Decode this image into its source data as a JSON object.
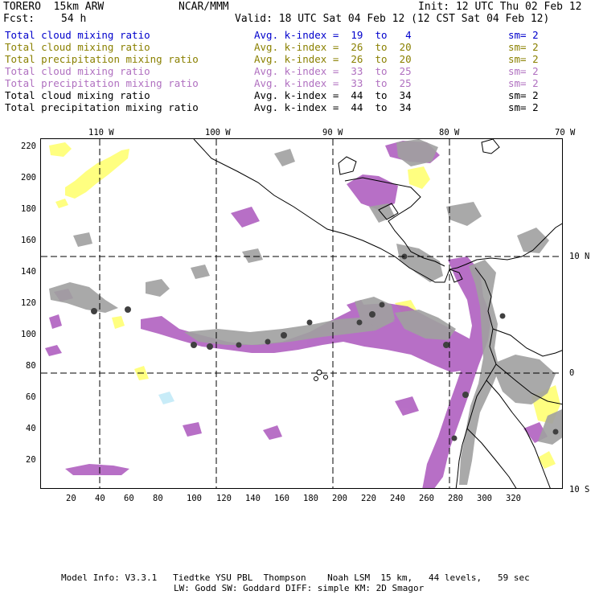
{
  "header": {
    "model": "TORERO  15km ARW",
    "org": "NCAR/MMM",
    "init": "Init: 12 UTC Thu 02 Feb 12",
    "fcst_label": "Fcst:",
    "fcst_value": "54 h",
    "valid": "Valid: 18 UTC Sat 04 Feb 12 (12 CST Sat 04 Feb 12)"
  },
  "legend": [
    {
      "field": "Total cloud mixing ratio",
      "kindex": "Avg. k-index =  19  to   4",
      "sm": "sm= 2",
      "color": "#0000cc"
    },
    {
      "field": "Total cloud mixing ratio",
      "kindex": "Avg. k-index =  26  to  20",
      "sm": "sm= 2",
      "color": "#8a8000"
    },
    {
      "field": "Total precipitation mixing ratio",
      "kindex": "Avg. k-index =  26  to  20",
      "sm": "sm= 2",
      "color": "#8a8000"
    },
    {
      "field": "Total cloud mixing ratio",
      "kindex": "Avg. k-index =  33  to  25",
      "sm": "sm= 2",
      "color": "#b070c0"
    },
    {
      "field": "Total precipitation mixing ratio",
      "kindex": "Avg. k-index =  33  to  25",
      "sm": "sm= 2",
      "color": "#b070c0"
    },
    {
      "field": "Total cloud mixing ratio",
      "kindex": "Avg. k-index =  44  to  34",
      "sm": "sm= 2",
      "color": "#000000"
    },
    {
      "field": "Total precipitation mixing ratio",
      "kindex": "Avg. k-index =  44  to  34",
      "sm": "sm= 2",
      "color": "#000000"
    }
  ],
  "map": {
    "top_lon_labels": [
      "110 W",
      "100 W",
      "90 W",
      "80 W",
      "70 W"
    ],
    "right_lat_labels": [
      "10 N",
      "0",
      "10 S"
    ],
    "y_ticks": [
      "220",
      "200",
      "180",
      "160",
      "140",
      "120",
      "100",
      "80",
      "60",
      "40",
      "20"
    ],
    "x_ticks": [
      "20",
      "40",
      "60",
      "80",
      "100",
      "120",
      "140",
      "160",
      "180",
      "200",
      "220",
      "240",
      "260",
      "280",
      "300",
      "320"
    ],
    "colors": {
      "gray": "#a0a0a0",
      "dark": "#404040",
      "purple": "#b060c0",
      "yellow": "#ffff80",
      "lightblue": "#c8ecf8"
    }
  },
  "footer": {
    "line1": "Model Info: V3.3.1   Tiedtke YSU PBL  Thompson    Noah LSM  15 km,   44 levels,   59 sec",
    "line2": "LW: Godd SW: Goddard DIFF: simple KM: 2D Smagor"
  }
}
